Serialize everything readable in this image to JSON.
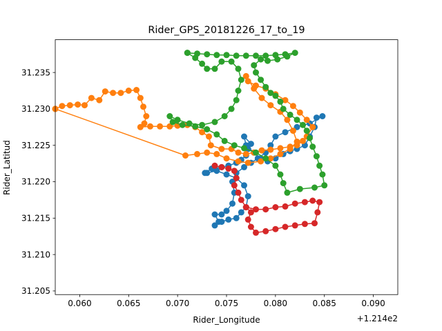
{
  "chart_data": {
    "type": "line",
    "title": "Rider_GPS_20181226_17_to_19",
    "xlabel": "Rider_Longitude",
    "ylabel": "Rider_Latitud",
    "x_offset_label": "+1.214e2",
    "xlim": [
      0.0575,
      0.0925
    ],
    "ylim": [
      31.2045,
      31.2395
    ],
    "x_ticks": [
      "0.060",
      "0.065",
      "0.070",
      "0.075",
      "0.080",
      "0.085",
      "0.090"
    ],
    "y_ticks": [
      "31.205",
      "31.210",
      "31.215",
      "31.220",
      "31.225",
      "31.230",
      "31.235"
    ],
    "grid": false,
    "markers": true,
    "series": [
      {
        "color": "#1f77b4",
        "points": [
          [
            0.0728,
            31.2212
          ],
          [
            0.0735,
            31.2218
          ],
          [
            0.0745,
            31.222
          ],
          [
            0.0752,
            31.2222
          ],
          [
            0.076,
            31.2226
          ],
          [
            0.0765,
            31.223
          ],
          [
            0.077,
            31.2236
          ],
          [
            0.0772,
            31.2245
          ],
          [
            0.0775,
            31.2252
          ],
          [
            0.0768,
            31.2262
          ],
          [
            0.077,
            31.225
          ],
          [
            0.0778,
            31.224
          ],
          [
            0.0785,
            31.2232
          ],
          [
            0.0792,
            31.2228
          ],
          [
            0.08,
            31.2232
          ],
          [
            0.0808,
            31.2238
          ],
          [
            0.0815,
            31.2242
          ],
          [
            0.0822,
            31.2245
          ],
          [
            0.083,
            31.225
          ],
          [
            0.0835,
            31.2262
          ],
          [
            0.084,
            31.2275
          ],
          [
            0.0842,
            31.2288
          ],
          [
            0.0848,
            31.229
          ],
          [
            0.0835,
            31.228
          ],
          [
            0.0822,
            31.2275
          ],
          [
            0.081,
            31.2268
          ],
          [
            0.08,
            31.2262
          ],
          [
            0.0795,
            31.225
          ],
          [
            0.079,
            31.224
          ],
          [
            0.0782,
            31.2232
          ],
          [
            0.0775,
            31.2226
          ],
          [
            0.0768,
            31.222
          ],
          [
            0.076,
            31.2212
          ],
          [
            0.0756,
            31.22
          ],
          [
            0.0758,
            31.2185
          ],
          [
            0.0756,
            31.217
          ],
          [
            0.075,
            31.216
          ],
          [
            0.0745,
            31.2155
          ],
          [
            0.0738,
            31.2155
          ],
          [
            0.0742,
            31.2145
          ],
          [
            0.0738,
            31.214
          ],
          [
            0.0745,
            31.2145
          ],
          [
            0.0752,
            31.2148
          ],
          [
            0.076,
            31.215
          ],
          [
            0.0765,
            31.2158
          ],
          [
            0.077,
            31.2165
          ],
          [
            0.0772,
            31.218
          ],
          [
            0.0768,
            31.2195
          ],
          [
            0.076,
            31.2205
          ],
          [
            0.075,
            31.221
          ],
          [
            0.074,
            31.2215
          ],
          [
            0.073,
            31.2212
          ]
        ]
      },
      {
        "color": "#ff7f0e",
        "points": [
          [
            0.0575,
            31.23
          ],
          [
            0.0582,
            31.2304
          ],
          [
            0.059,
            31.2305
          ],
          [
            0.0598,
            31.2306
          ],
          [
            0.0605,
            31.2305
          ],
          [
            0.0612,
            31.2315
          ],
          [
            0.062,
            31.2312
          ],
          [
            0.0626,
            31.2324
          ],
          [
            0.0634,
            31.2322
          ],
          [
            0.0642,
            31.2322
          ],
          [
            0.065,
            31.2325
          ],
          [
            0.0658,
            31.2326
          ],
          [
            0.0662,
            31.2315
          ],
          [
            0.0665,
            31.2303
          ],
          [
            0.0668,
            31.229
          ],
          [
            0.0666,
            31.228
          ],
          [
            0.0662,
            31.2275
          ],
          [
            0.0672,
            31.2276
          ],
          [
            0.0682,
            31.2276
          ],
          [
            0.0692,
            31.2276
          ],
          [
            0.07,
            31.2277
          ],
          [
            0.071,
            31.2278
          ],
          [
            0.0718,
            31.2275
          ],
          [
            0.0725,
            31.2268
          ],
          [
            0.0732,
            31.2262
          ],
          [
            0.0734,
            31.225
          ],
          [
            0.0745,
            31.2245
          ],
          [
            0.0755,
            31.2245
          ],
          [
            0.0762,
            31.224
          ],
          [
            0.077,
            31.2238
          ],
          [
            0.0778,
            31.224
          ],
          [
            0.0786,
            31.2243
          ],
          [
            0.0795,
            31.2244
          ],
          [
            0.0805,
            31.2246
          ],
          [
            0.0815,
            31.2248
          ],
          [
            0.0822,
            31.225
          ],
          [
            0.0828,
            31.2256
          ],
          [
            0.0832,
            31.2262
          ],
          [
            0.0838,
            31.2275
          ],
          [
            0.0832,
            31.2285
          ],
          [
            0.0825,
            31.2295
          ],
          [
            0.0818,
            31.2304
          ],
          [
            0.081,
            31.2312
          ],
          [
            0.08,
            31.232
          ],
          [
            0.079,
            31.2328
          ],
          [
            0.078,
            31.2332
          ],
          [
            0.0772,
            31.2338
          ],
          [
            0.077,
            31.2345
          ],
          [
            0.0778,
            31.2328
          ],
          [
            0.0786,
            31.2315
          ],
          [
            0.0795,
            31.2305
          ],
          [
            0.0805,
            31.2296
          ],
          [
            0.0812,
            31.2285
          ],
          [
            0.0818,
            31.227
          ],
          [
            0.0822,
            31.2255
          ],
          [
            0.0815,
            31.2245
          ],
          [
            0.0805,
            31.2238
          ],
          [
            0.0795,
            31.2232
          ],
          [
            0.0785,
            31.2228
          ],
          [
            0.0772,
            31.2226
          ],
          [
            0.0762,
            31.2228
          ],
          [
            0.075,
            31.2232
          ],
          [
            0.074,
            31.2238
          ],
          [
            0.073,
            31.224
          ],
          [
            0.072,
            31.2238
          ],
          [
            0.0708,
            31.2236
          ],
          [
            0.0575,
            31.23
          ]
        ]
      },
      {
        "color": "#2ca02c",
        "points": [
          [
            0.071,
            31.2377
          ],
          [
            0.072,
            31.2376
          ],
          [
            0.073,
            31.2375
          ],
          [
            0.074,
            31.2374
          ],
          [
            0.075,
            31.2374
          ],
          [
            0.076,
            31.2373
          ],
          [
            0.077,
            31.2373
          ],
          [
            0.078,
            31.2373
          ],
          [
            0.079,
            31.2373
          ],
          [
            0.08,
            31.2374
          ],
          [
            0.081,
            31.2375
          ],
          [
            0.082,
            31.2377
          ],
          [
            0.0812,
            31.2372
          ],
          [
            0.0802,
            31.2368
          ],
          [
            0.0792,
            31.2366
          ],
          [
            0.0785,
            31.2368
          ],
          [
            0.0778,
            31.236
          ],
          [
            0.078,
            31.235
          ],
          [
            0.0785,
            31.234
          ],
          [
            0.079,
            31.233
          ],
          [
            0.0795,
            31.2322
          ],
          [
            0.08,
            31.2318
          ],
          [
            0.0805,
            31.231
          ],
          [
            0.0808,
            31.23
          ],
          [
            0.0815,
            31.2292
          ],
          [
            0.0822,
            31.2285
          ],
          [
            0.0828,
            31.2278
          ],
          [
            0.0832,
            31.227
          ],
          [
            0.0835,
            31.226
          ],
          [
            0.0838,
            31.2248
          ],
          [
            0.0842,
            31.2235
          ],
          [
            0.0845,
            31.2222
          ],
          [
            0.0848,
            31.221
          ],
          [
            0.085,
            31.2195
          ],
          [
            0.084,
            31.2192
          ],
          [
            0.0825,
            31.219
          ],
          [
            0.0812,
            31.2185
          ],
          [
            0.0808,
            31.2198
          ],
          [
            0.0805,
            31.221
          ],
          [
            0.08,
            31.2222
          ],
          [
            0.079,
            31.2232
          ],
          [
            0.078,
            31.224
          ],
          [
            0.0768,
            31.2246
          ],
          [
            0.0758,
            31.225
          ],
          [
            0.0748,
            31.2256
          ],
          [
            0.074,
            31.2265
          ],
          [
            0.073,
            31.2272
          ],
          [
            0.0718,
            31.2276
          ],
          [
            0.0705,
            31.2278
          ],
          [
            0.0695,
            31.2282
          ],
          [
            0.0692,
            31.229
          ],
          [
            0.07,
            31.2285
          ],
          [
            0.0712,
            31.228
          ],
          [
            0.0725,
            31.2278
          ],
          [
            0.0738,
            31.2282
          ],
          [
            0.0748,
            31.229
          ],
          [
            0.0755,
            31.23
          ],
          [
            0.076,
            31.2312
          ],
          [
            0.0762,
            31.2325
          ],
          [
            0.0765,
            31.234
          ],
          [
            0.0762,
            31.2355
          ],
          [
            0.0755,
            31.2365
          ],
          [
            0.0745,
            31.2365
          ],
          [
            0.0738,
            31.2355
          ],
          [
            0.073,
            31.2355
          ],
          [
            0.0725,
            31.2362
          ],
          [
            0.0718,
            31.237
          ],
          [
            0.071,
            31.2377
          ]
        ]
      },
      {
        "color": "#d62728",
        "points": [
          [
            0.0738,
            31.2222
          ],
          [
            0.0745,
            31.222
          ],
          [
            0.0752,
            31.2218
          ],
          [
            0.0758,
            31.2215
          ],
          [
            0.076,
            31.2205
          ],
          [
            0.0758,
            31.2195
          ],
          [
            0.0762,
            31.2185
          ],
          [
            0.0765,
            31.2175
          ],
          [
            0.077,
            31.2165
          ],
          [
            0.0775,
            31.2158
          ],
          [
            0.0772,
            31.2148
          ],
          [
            0.0775,
            31.2138
          ],
          [
            0.078,
            31.213
          ],
          [
            0.079,
            31.2132
          ],
          [
            0.08,
            31.2135
          ],
          [
            0.081,
            31.2138
          ],
          [
            0.082,
            31.214
          ],
          [
            0.083,
            31.2142
          ],
          [
            0.084,
            31.2143
          ],
          [
            0.0843,
            31.2158
          ],
          [
            0.0845,
            31.2172
          ],
          [
            0.0838,
            31.2174
          ],
          [
            0.083,
            31.2172
          ],
          [
            0.082,
            31.217
          ],
          [
            0.081,
            31.2166
          ],
          [
            0.08,
            31.2165
          ],
          [
            0.079,
            31.2162
          ],
          [
            0.078,
            31.2162
          ],
          [
            0.077,
            31.2165
          ]
        ]
      }
    ]
  }
}
